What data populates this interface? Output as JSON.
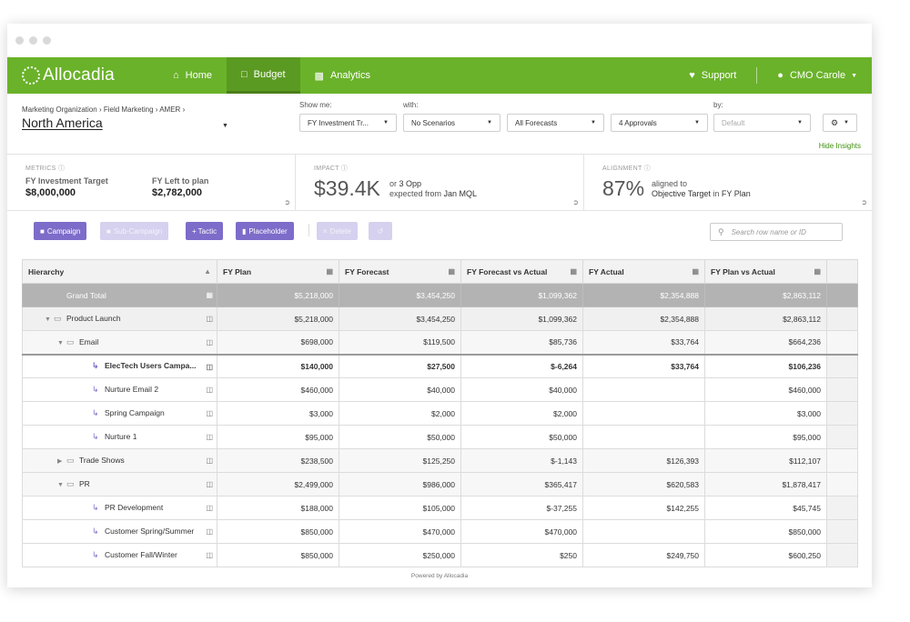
{
  "navbar": {
    "logo": "Allocadia",
    "items": [
      {
        "label": "Home",
        "icon": "home-icon"
      },
      {
        "label": "Budget",
        "icon": "monitor-icon"
      },
      {
        "label": "Analytics",
        "icon": "bar-chart-icon"
      }
    ],
    "support": "Support",
    "user": "CMO Carole"
  },
  "filters": {
    "breadcrumb": [
      "Marketing Organization",
      "Field Marketing",
      "AMER"
    ],
    "region": "North America",
    "show_me_label": "Show me:",
    "with_label": "with:",
    "by_label": "by:",
    "show_me": "FY Investment Tr...",
    "scenarios": "No Scenarios",
    "forecasts": "All Forecasts",
    "approvals": "4 Approvals",
    "by": "Default",
    "hide_insights": "Hide Insights"
  },
  "metrics": {
    "title": "METRICS",
    "target_label": "FY Investment Target",
    "target_value": "$8,000,000",
    "left_label": "FY Left to plan",
    "left_value": "$2,782,000"
  },
  "impact": {
    "title": "IMPACT",
    "value": "$39.4K",
    "line1_pre": "or",
    "line1_val": "3 Opp",
    "line2_pre": "expected from",
    "line2_val": "Jan MQL"
  },
  "alignment": {
    "title": "ALIGNMENT",
    "value": "87%",
    "line1": "aligned to",
    "line2_val": "Objective Target",
    "line2_mid": "in",
    "line2_end": "FY Plan"
  },
  "toolbar": {
    "campaign": "Campaign",
    "sub_campaign": "Sub-Campaign",
    "tactic": "Tactic",
    "placeholder": "Placeholder",
    "delete": "Delete",
    "search_placeholder": "Search row name or ID"
  },
  "table": {
    "headers": [
      "Hierarchy",
      "FY Plan",
      "FY Forecast",
      "FY Forecast vs Actual",
      "FY Actual",
      "FY Plan vs Actual"
    ],
    "rows": [
      {
        "name": "Grand Total",
        "plan": "$5,218,000",
        "forecast": "$3,454,250",
        "fva": "$1,099,362",
        "actual": "$2,354,888",
        "pva": "$2,863,112"
      },
      {
        "name": "Product Launch",
        "plan": "$5,218,000",
        "forecast": "$3,454,250",
        "fva": "$1,099,362",
        "actual": "$2,354,888",
        "pva": "$2,863,112"
      },
      {
        "name": "Email",
        "plan": "$698,000",
        "forecast": "$119,500",
        "fva": "$85,736",
        "actual": "$33,764",
        "pva": "$664,236"
      },
      {
        "name": "ElecTech Users Campa...",
        "plan": "$140,000",
        "forecast": "$27,500",
        "fva": "$-6,264",
        "actual": "$33,764",
        "pva": "$106,236"
      },
      {
        "name": "Nurture Email 2",
        "plan": "$460,000",
        "forecast": "$40,000",
        "fva": "$40,000",
        "actual": "",
        "pva": "$460,000"
      },
      {
        "name": "Spring Campaign",
        "plan": "$3,000",
        "forecast": "$2,000",
        "fva": "$2,000",
        "actual": "",
        "pva": "$3,000"
      },
      {
        "name": "Nurture 1",
        "plan": "$95,000",
        "forecast": "$50,000",
        "fva": "$50,000",
        "actual": "",
        "pva": "$95,000"
      },
      {
        "name": "Trade Shows",
        "plan": "$238,500",
        "forecast": "$125,250",
        "fva": "$-1,143",
        "actual": "$126,393",
        "pva": "$112,107"
      },
      {
        "name": "PR",
        "plan": "$2,499,000",
        "forecast": "$986,000",
        "fva": "$365,417",
        "actual": "$620,583",
        "pva": "$1,878,417"
      },
      {
        "name": "PR Development",
        "plan": "$188,000",
        "forecast": "$105,000",
        "fva": "$-37,255",
        "actual": "$142,255",
        "pva": "$45,745"
      },
      {
        "name": "Customer Spring/Summer",
        "plan": "$850,000",
        "forecast": "$470,000",
        "fva": "$470,000",
        "actual": "",
        "pva": "$850,000"
      },
      {
        "name": "Customer Fall/Winter",
        "plan": "$850,000",
        "forecast": "$250,000",
        "fva": "$250",
        "actual": "$249,750",
        "pva": "$600,250"
      }
    ]
  },
  "footer": "Powered by Allocadia",
  "colors": {
    "brand_green": "#6ab22a",
    "accent_purple": "#7d6cc9"
  }
}
